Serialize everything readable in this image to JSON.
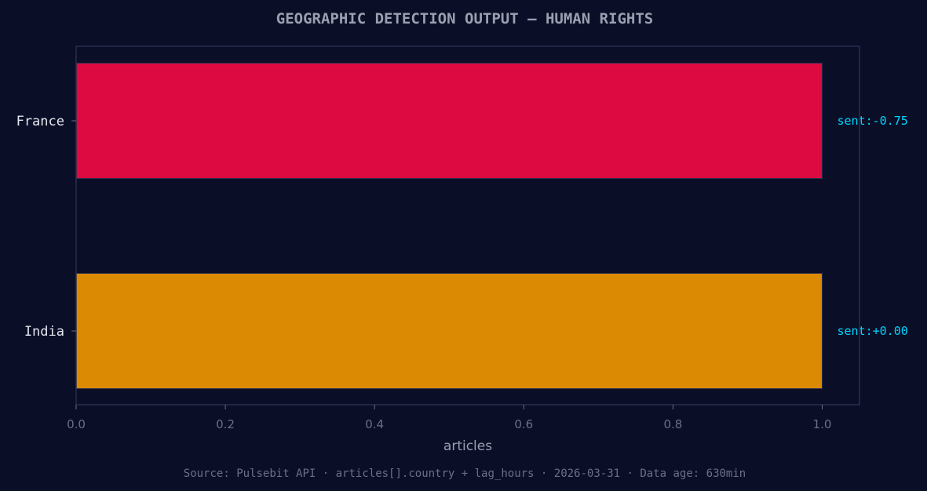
{
  "chart_data": {
    "type": "bar",
    "orientation": "horizontal",
    "title": "GEOGRAPHIC DETECTION OUTPUT — HUMAN RIGHTS",
    "xlabel": "articles",
    "ylabel": "",
    "categories": [
      "France",
      "India"
    ],
    "values": [
      1,
      1
    ],
    "bar_labels": [
      "sent:-0.75",
      "sent:+0.00"
    ],
    "bar_colors": [
      "#dc0a40",
      "#db8b03"
    ],
    "xlim": [
      0,
      1.05
    ],
    "xticks": [
      "0.0",
      "0.2",
      "0.4",
      "0.6",
      "0.8",
      "1.0"
    ],
    "grid": false,
    "footer": "Source: Pulsebit API · articles[].country + lag_hours · 2026-03-31 · Data age: 630min"
  },
  "colors": {
    "background": "#0a0e27",
    "axes_edge": "#2a2f4e",
    "title": "#9aa0b0",
    "tick_label": "#6b7086",
    "category_label": "#e6e8f0",
    "annotation": "#00d4ff"
  }
}
